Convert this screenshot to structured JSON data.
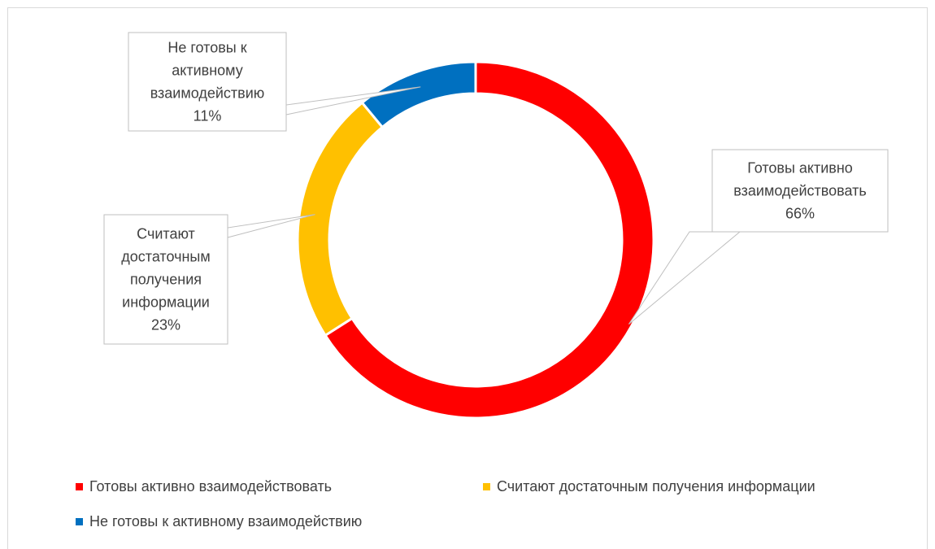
{
  "chart_data": {
    "type": "pie",
    "variant": "doughnut",
    "title": "",
    "series": [
      {
        "name": "Готовы активно взаимодействовать",
        "value": 66,
        "color": "#ff0000",
        "label_lines": [
          "Готовы активно",
          "взаимодействовать",
          "66%"
        ]
      },
      {
        "name": "Считают достаточным получения информации",
        "value": 23,
        "color": "#ffc000",
        "label_lines": [
          "Считают",
          "достаточным",
          "получения",
          "информации",
          "23%"
        ]
      },
      {
        "name": "Не готовы к активному взаимодействию",
        "value": 11,
        "color": "#0070c0",
        "label_lines": [
          "Не готовы к",
          "активному",
          "взаимодействию",
          "11%"
        ]
      }
    ],
    "legend_position": "bottom"
  }
}
